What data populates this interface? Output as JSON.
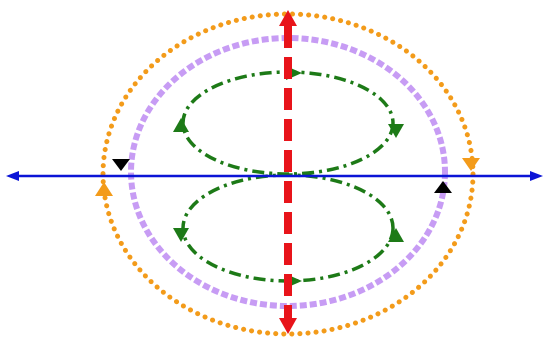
{
  "colors": {
    "background": "#ffffff",
    "horizontal_axis": "#0b14d6",
    "vertical_axis": "#e8141a",
    "outer_contour": "#f39b1a",
    "inner_contour": "#c79cf4",
    "figure_eight": "#1d7a17",
    "black_arrow": "#000000"
  },
  "icons": {
    "horizontal_axis": "double-headed-arrow",
    "vertical_axis": "double-headed-arrow",
    "direction_markers": "arrowhead"
  }
}
